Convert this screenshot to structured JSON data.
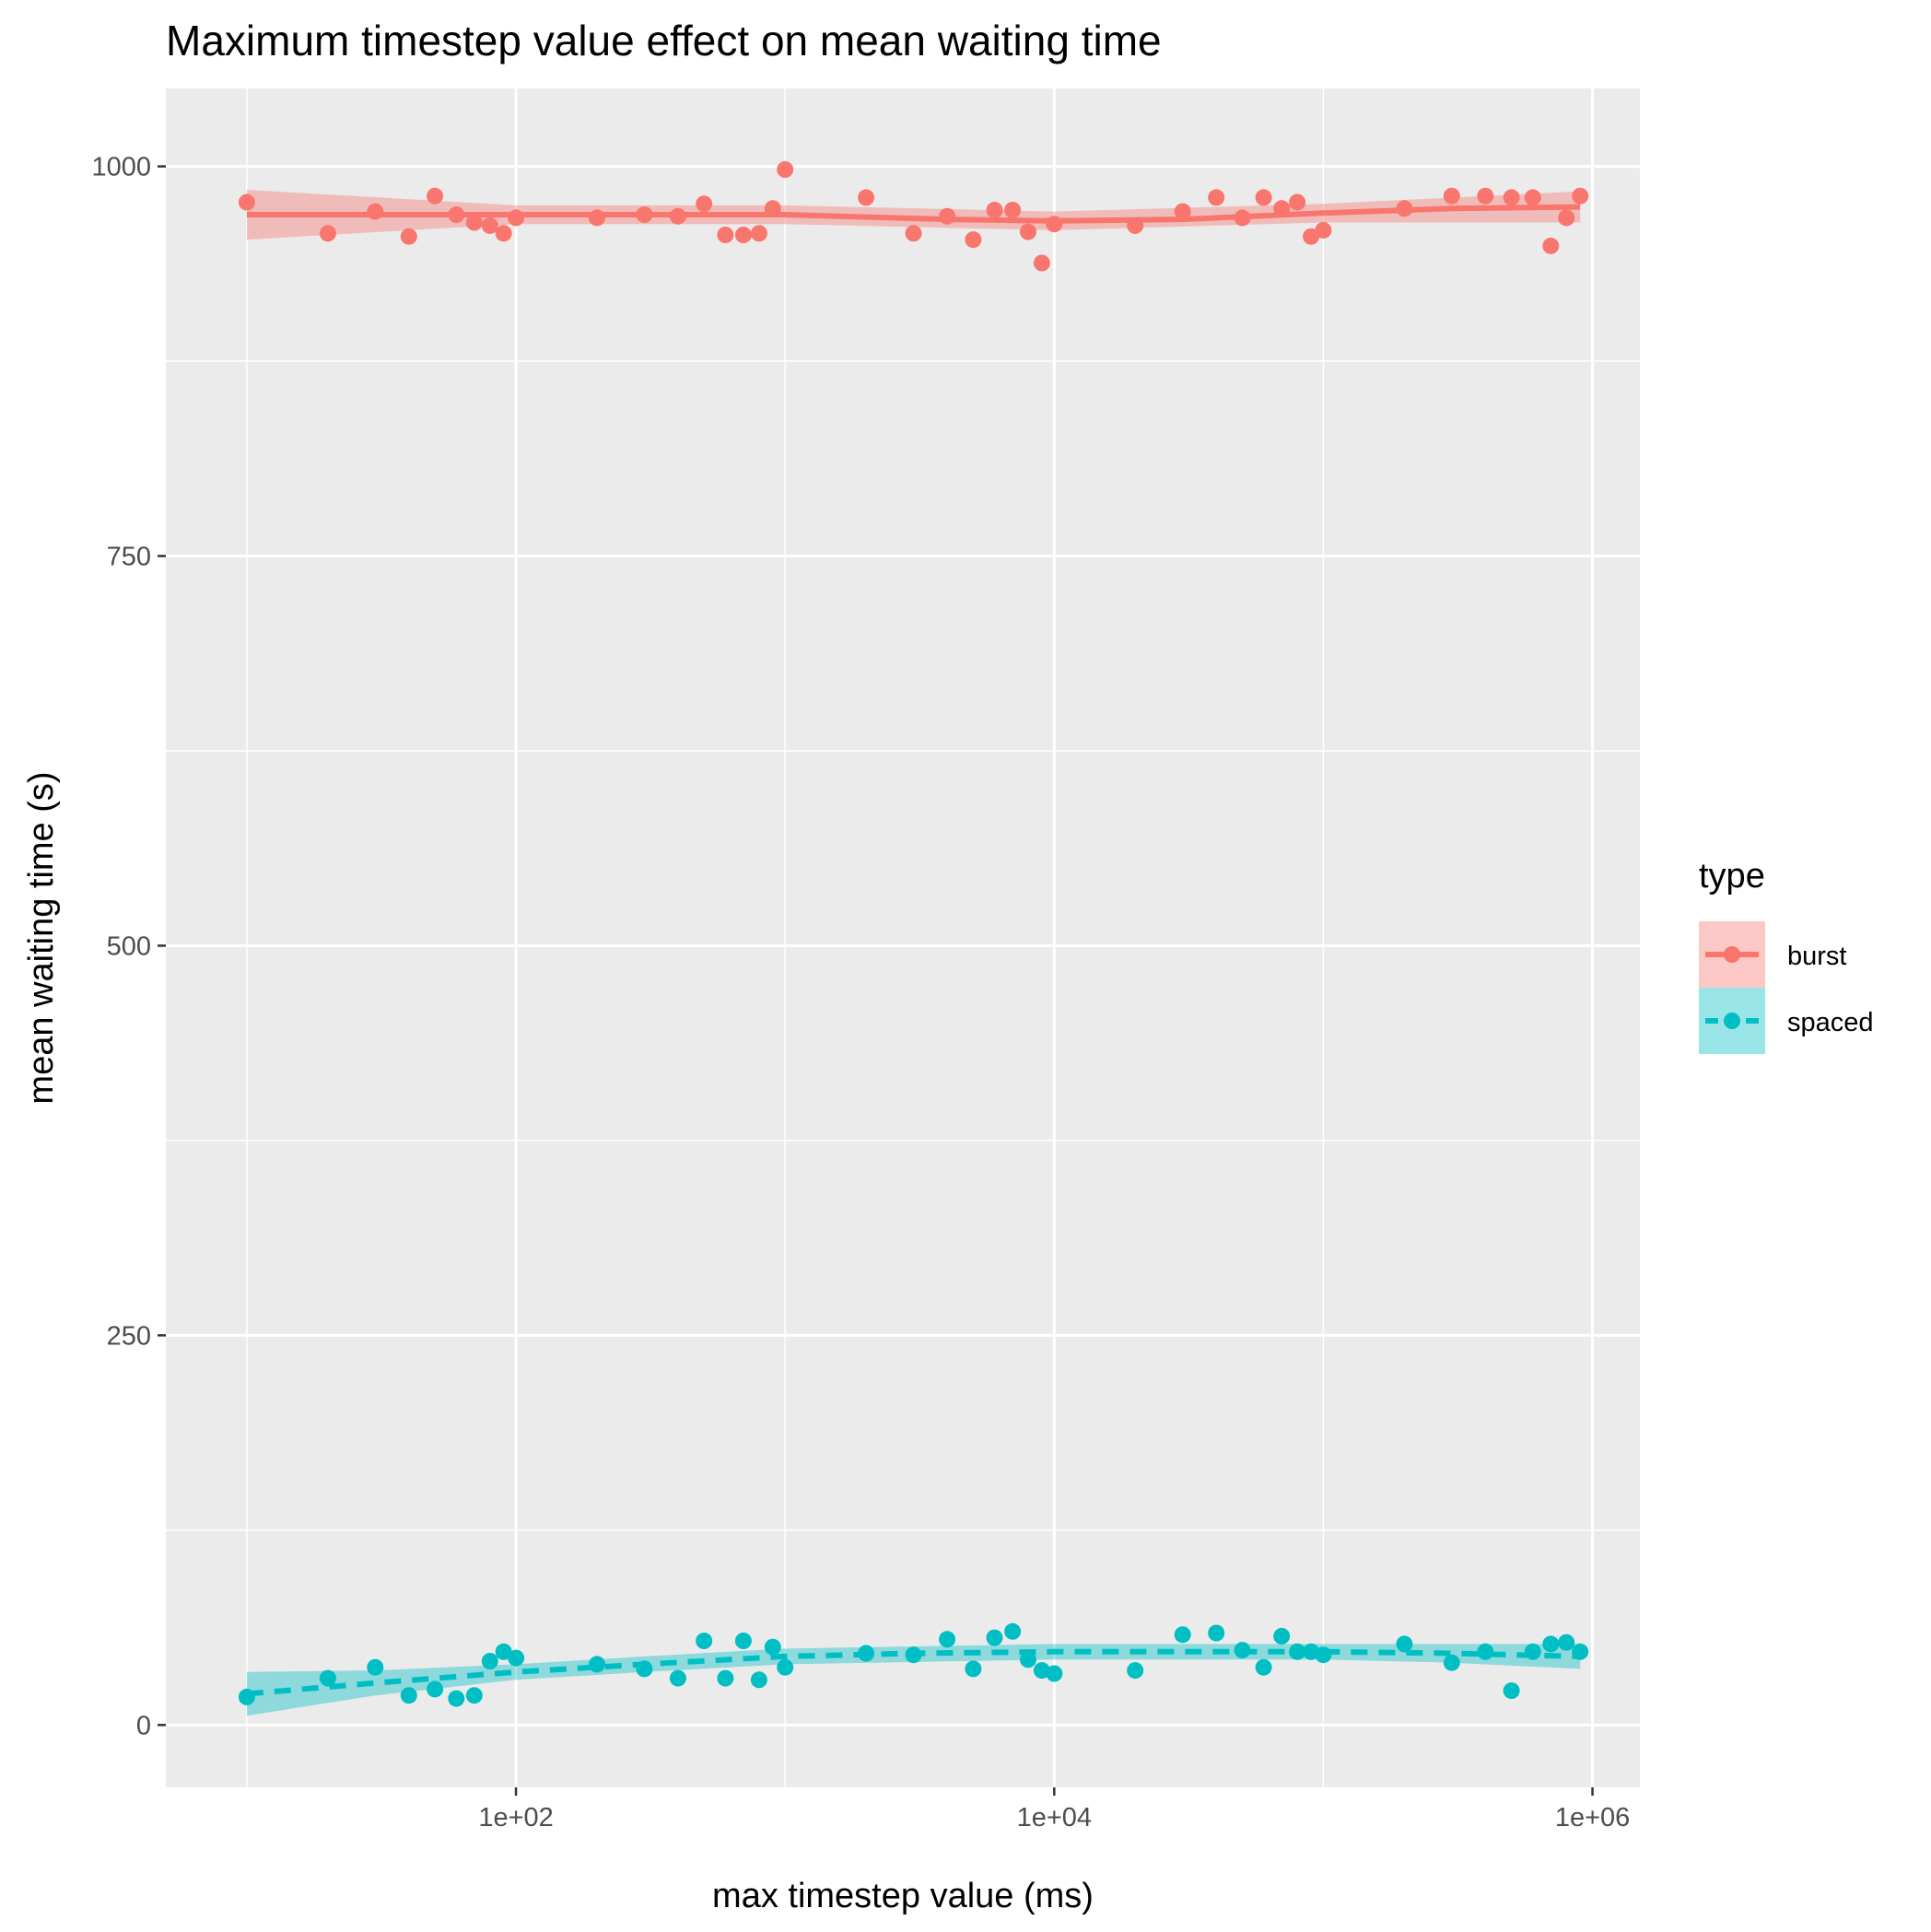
{
  "chart_data": {
    "type": "scatter",
    "title": "Maximum timestep value effect on mean waiting time",
    "xlabel": "max timestep value (ms)",
    "ylabel": "mean waiting time (s)",
    "x_scale": "log10",
    "xlim": [
      5,
      1500000
    ],
    "ylim": [
      -40,
      1050
    ],
    "x_ticks": [
      100,
      10000,
      1000000
    ],
    "x_tick_labels": [
      "1e+02",
      "1e+04",
      "1e+06"
    ],
    "y_ticks": [
      0,
      250,
      500,
      750,
      1000
    ],
    "y_tick_labels": [
      "0",
      "250",
      "500",
      "750",
      "1000"
    ],
    "grid": true,
    "legend": {
      "title": "type",
      "position": "right"
    },
    "series": [
      {
        "name": "burst",
        "color": "#F8766D",
        "line_style": "solid",
        "points": [
          [
            10,
            977
          ],
          [
            20,
            957
          ],
          [
            30,
            971
          ],
          [
            40,
            955
          ],
          [
            50,
            981
          ],
          [
            60,
            969
          ],
          [
            70,
            964
          ],
          [
            80,
            962
          ],
          [
            90,
            957
          ],
          [
            100,
            967
          ],
          [
            200,
            967
          ],
          [
            300,
            969
          ],
          [
            400,
            968
          ],
          [
            500,
            976
          ],
          [
            600,
            956
          ],
          [
            700,
            956
          ],
          [
            800,
            957
          ],
          [
            900,
            973
          ],
          [
            1000,
            998
          ],
          [
            2000,
            980
          ],
          [
            3000,
            957
          ],
          [
            4000,
            968
          ],
          [
            5000,
            953
          ],
          [
            6000,
            972
          ],
          [
            7000,
            972
          ],
          [
            8000,
            958
          ],
          [
            9000,
            938
          ],
          [
            10000,
            963
          ],
          [
            20000,
            962
          ],
          [
            30000,
            971
          ],
          [
            40000,
            980
          ],
          [
            50000,
            967
          ],
          [
            60000,
            980
          ],
          [
            70000,
            973
          ],
          [
            80000,
            977
          ],
          [
            90000,
            955
          ],
          [
            100000,
            959
          ],
          [
            200000,
            973
          ],
          [
            300000,
            981
          ],
          [
            400000,
            981
          ],
          [
            500000,
            980
          ],
          [
            600000,
            980
          ],
          [
            700000,
            949
          ],
          [
            800000,
            967
          ],
          [
            900000,
            981
          ]
        ],
        "smooth": [
          [
            10,
            969
          ],
          [
            100,
            969
          ],
          [
            1000,
            969
          ],
          [
            4000,
            966
          ],
          [
            10000,
            965
          ],
          [
            30000,
            966
          ],
          [
            100000,
            970
          ],
          [
            300000,
            973
          ],
          [
            900000,
            974
          ]
        ],
        "ci": {
          "x": [
            10,
            100,
            1000,
            10000,
            100000,
            900000
          ],
          "lower": [
            953,
            963,
            963,
            959,
            964,
            964
          ],
          "upper": [
            985,
            975,
            975,
            971,
            976,
            984
          ]
        }
      },
      {
        "name": "spaced",
        "color": "#00BFC4",
        "line_style": "dashed",
        "points": [
          [
            10,
            18
          ],
          [
            20,
            30
          ],
          [
            30,
            37
          ],
          [
            40,
            19
          ],
          [
            50,
            23
          ],
          [
            60,
            17
          ],
          [
            70,
            19
          ],
          [
            80,
            41
          ],
          [
            90,
            47
          ],
          [
            100,
            43
          ],
          [
            200,
            39
          ],
          [
            300,
            36
          ],
          [
            400,
            30
          ],
          [
            500,
            54
          ],
          [
            600,
            30
          ],
          [
            700,
            54
          ],
          [
            800,
            29
          ],
          [
            900,
            50
          ],
          [
            1000,
            37
          ],
          [
            2000,
            46
          ],
          [
            3000,
            45
          ],
          [
            4000,
            55
          ],
          [
            5000,
            36
          ],
          [
            6000,
            56
          ],
          [
            7000,
            60
          ],
          [
            8000,
            42
          ],
          [
            9000,
            35
          ],
          [
            10000,
            33
          ],
          [
            20000,
            35
          ],
          [
            30000,
            58
          ],
          [
            40000,
            59
          ],
          [
            50000,
            48
          ],
          [
            60000,
            37
          ],
          [
            70000,
            57
          ],
          [
            80000,
            47
          ],
          [
            90000,
            47
          ],
          [
            100000,
            45
          ],
          [
            200000,
            52
          ],
          [
            300000,
            40
          ],
          [
            400000,
            47
          ],
          [
            500000,
            22
          ],
          [
            600000,
            47
          ],
          [
            700000,
            52
          ],
          [
            800000,
            53
          ],
          [
            900000,
            47
          ]
        ],
        "smooth": [
          [
            10,
            20
          ],
          [
            30,
            27
          ],
          [
            100,
            34
          ],
          [
            300,
            39
          ],
          [
            1000,
            44
          ],
          [
            3000,
            46
          ],
          [
            10000,
            47
          ],
          [
            100000,
            47
          ],
          [
            300000,
            46
          ],
          [
            900000,
            44
          ]
        ],
        "ci": {
          "x": [
            10,
            30,
            100,
            300,
            1000,
            10000,
            100000,
            300000,
            900000
          ],
          "lower": [
            6,
            19,
            29,
            34,
            39,
            42,
            42,
            40,
            36
          ],
          "upper": [
            34,
            35,
            39,
            44,
            49,
            52,
            52,
            52,
            52
          ]
        }
      }
    ]
  }
}
